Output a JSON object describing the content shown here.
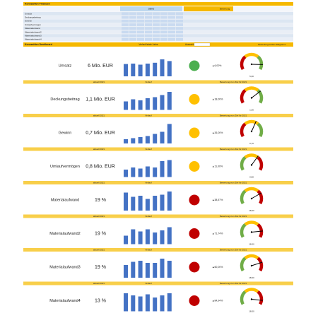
{
  "header": {
    "title": "Kennzahlen Finanzen",
    "years": "Jahre",
    "rating": "Bewertung"
  },
  "top_table": {
    "rows": [
      "Umsatz",
      "Deckungsbeitrag",
      "Gewinn",
      "Umlaufvermögen",
      "Materialaufwand",
      "Materialaufwand2",
      "Materialaufwand3",
      "Materialaufwand4"
    ]
  },
  "dashboard": {
    "title": "Kennzahlen Dashboard",
    "trend_label": "Verlauf letzte Jahre",
    "select_label": "Auswahl",
    "legend_label": "Bewertung Farben Diagramm",
    "band": {
      "current": "aktuell 2021",
      "trend": "Verlauf",
      "rating": "Bewertung zum Ziel für 2021"
    },
    "ylim": [
      0,
      100
    ],
    "gauge_lim": [
      0,
      100
    ],
    "bar_color": "#4472c4",
    "rows": [
      {
        "label": "Umsatz",
        "value": "6 Mio. EUR",
        "bars": [
          58,
          60,
          55,
          60,
          64,
          80,
          72
        ],
        "status_color": "#4caf50",
        "change": "6,00%",
        "change_color": "#4caf50",
        "gauge": 88,
        "gauge_label": "5,00",
        "gauge_colors": [
          "#c00000",
          "#ffc000",
          "#70ad47"
        ]
      },
      {
        "label": "Deckungsbeitrag",
        "value": "1,1 Mio. EUR",
        "bars": [
          40,
          50,
          45,
          55,
          60,
          70,
          85
        ],
        "status_color": "#ffc000",
        "change": "18,00%",
        "change_color": "#ffc000",
        "gauge": 72,
        "gauge_label": "1,00",
        "gauge_colors": [
          "#c00000",
          "#ffc000",
          "#70ad47"
        ]
      },
      {
        "label": "Gewinn",
        "value": "0,7 Mio. EUR",
        "bars": [
          20,
          25,
          30,
          35,
          45,
          55,
          92
        ],
        "status_color": "#ffc000",
        "change": "26,00%",
        "change_color": "#ffc000",
        "gauge": 60,
        "gauge_label": "0,70",
        "gauge_colors": [
          "#c00000",
          "#ffc000",
          "#70ad47"
        ]
      },
      {
        "label": "Umlaufvermögen",
        "value": "0,8 Mio. EUR",
        "bars": [
          35,
          45,
          40,
          50,
          45,
          75,
          80
        ],
        "status_color": "#ffc000",
        "change": "11,00%",
        "change_color": "#ffc000",
        "gauge": 65,
        "gauge_label": "0,80",
        "gauge_colors": [
          "#70ad47",
          "#ffc000",
          "#c00000"
        ]
      },
      {
        "label": "Materialaufwand",
        "value": "19 %",
        "bars": [
          85,
          65,
          70,
          55,
          70,
          75,
          90
        ],
        "status_color": "#c00000",
        "change": "38,57%",
        "change_color": "#c00000",
        "gauge": 75,
        "gauge_label": "18,00",
        "gauge_colors": [
          "#70ad47",
          "#ffc000",
          "#c00000"
        ]
      },
      {
        "label": "Materialaufwand2",
        "value": "19 %",
        "bars": [
          40,
          70,
          60,
          70,
          55,
          65,
          80
        ],
        "status_color": "#c00000",
        "change": "71,74%",
        "change_color": "#c00000",
        "gauge": 85,
        "gauge_label": "18,00",
        "gauge_colors": [
          "#70ad47",
          "#ffc000",
          "#c00000"
        ]
      },
      {
        "label": "Materialaufwand3",
        "value": "19 %",
        "bars": [
          60,
          75,
          80,
          70,
          70,
          90,
          80
        ],
        "status_color": "#c00000",
        "change": "60,00%",
        "change_color": "#c00000",
        "gauge": 80,
        "gauge_label": "18,00",
        "gauge_colors": [
          "#70ad47",
          "#ffc000",
          "#c00000"
        ]
      },
      {
        "label": "Materialaufwand4",
        "value": "13 %",
        "bars": [
          85,
          75,
          70,
          80,
          65,
          75,
          85
        ],
        "status_color": "#c00000",
        "change": "84,94%",
        "change_color": "#c00000",
        "gauge": 90,
        "gauge_label": "18,00",
        "gauge_colors": [
          "#70ad47",
          "#ffc000",
          "#c00000"
        ]
      }
    ]
  }
}
